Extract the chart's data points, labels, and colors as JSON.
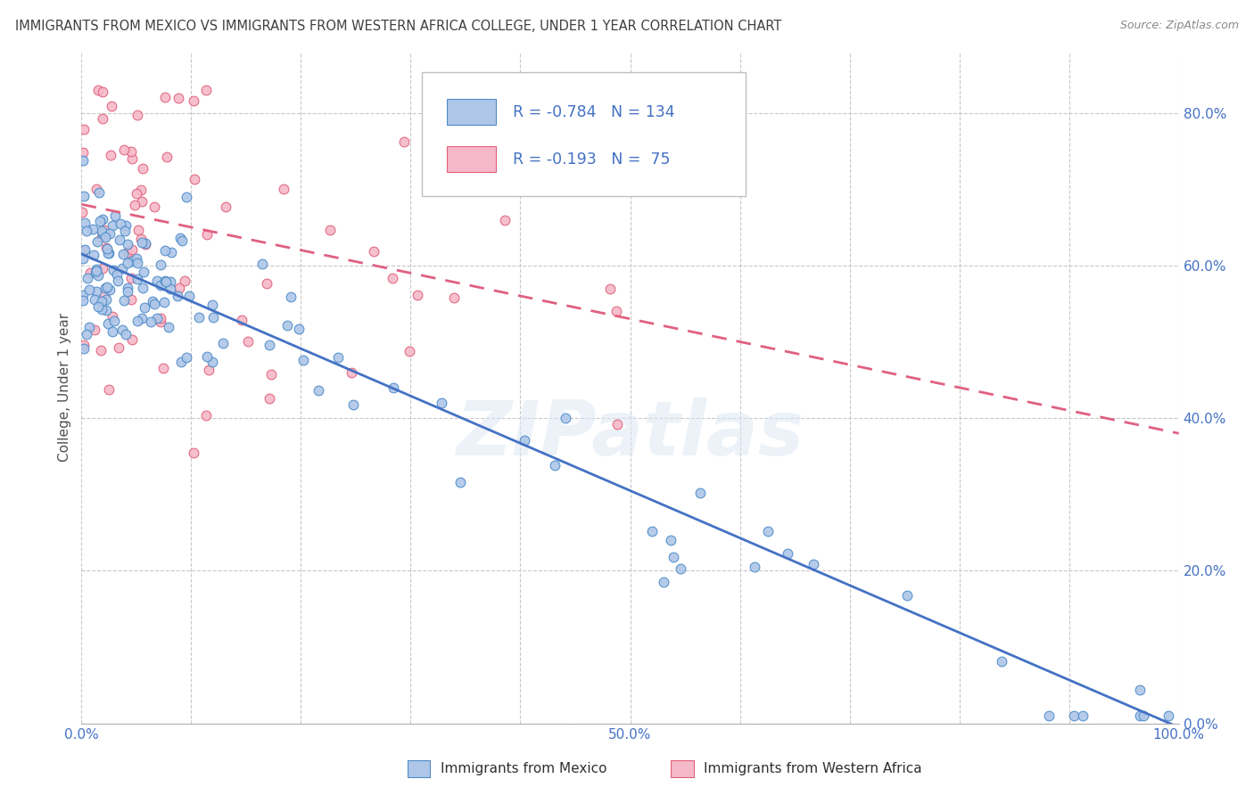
{
  "title": "IMMIGRANTS FROM MEXICO VS IMMIGRANTS FROM WESTERN AFRICA COLLEGE, UNDER 1 YEAR CORRELATION CHART",
  "source": "Source: ZipAtlas.com",
  "ylabel": "College, Under 1 year",
  "xlim": [
    0.0,
    1.0
  ],
  "ylim": [
    0.0,
    0.88
  ],
  "xticks": [
    0.0,
    0.1,
    0.2,
    0.3,
    0.4,
    0.5,
    0.6,
    0.7,
    0.8,
    0.9,
    1.0
  ],
  "yticks": [
    0.0,
    0.2,
    0.4,
    0.6,
    0.8
  ],
  "ytick_labels": [
    "0.0%",
    "20.0%",
    "40.0%",
    "60.0%",
    "80.0%"
  ],
  "xtick_labels": [
    "0.0%",
    "",
    "",
    "",
    "",
    "50.0%",
    "",
    "",
    "",
    "",
    "100.0%"
  ],
  "mexico_color": "#aec6e8",
  "mexico_edge_color": "#4d8cc8",
  "western_africa_color": "#f5b8c8",
  "western_africa_edge_color": "#e0607a",
  "mexico_line_color": "#4472c4",
  "western_africa_line_color": "#e06080",
  "mexico_R": -0.784,
  "mexico_N": 134,
  "western_africa_R": -0.193,
  "western_africa_N": 75,
  "watermark": "ZIPatlas",
  "background_color": "#ffffff",
  "grid_color": "#c8c8c8",
  "title_color": "#404040",
  "axis_color": "#4472c4",
  "legend_text_color": "#4472c4",
  "mexico_line_start_y": 0.615,
  "mexico_line_end_y": -0.005,
  "wa_line_start_y": 0.68,
  "wa_line_end_y": 0.38
}
